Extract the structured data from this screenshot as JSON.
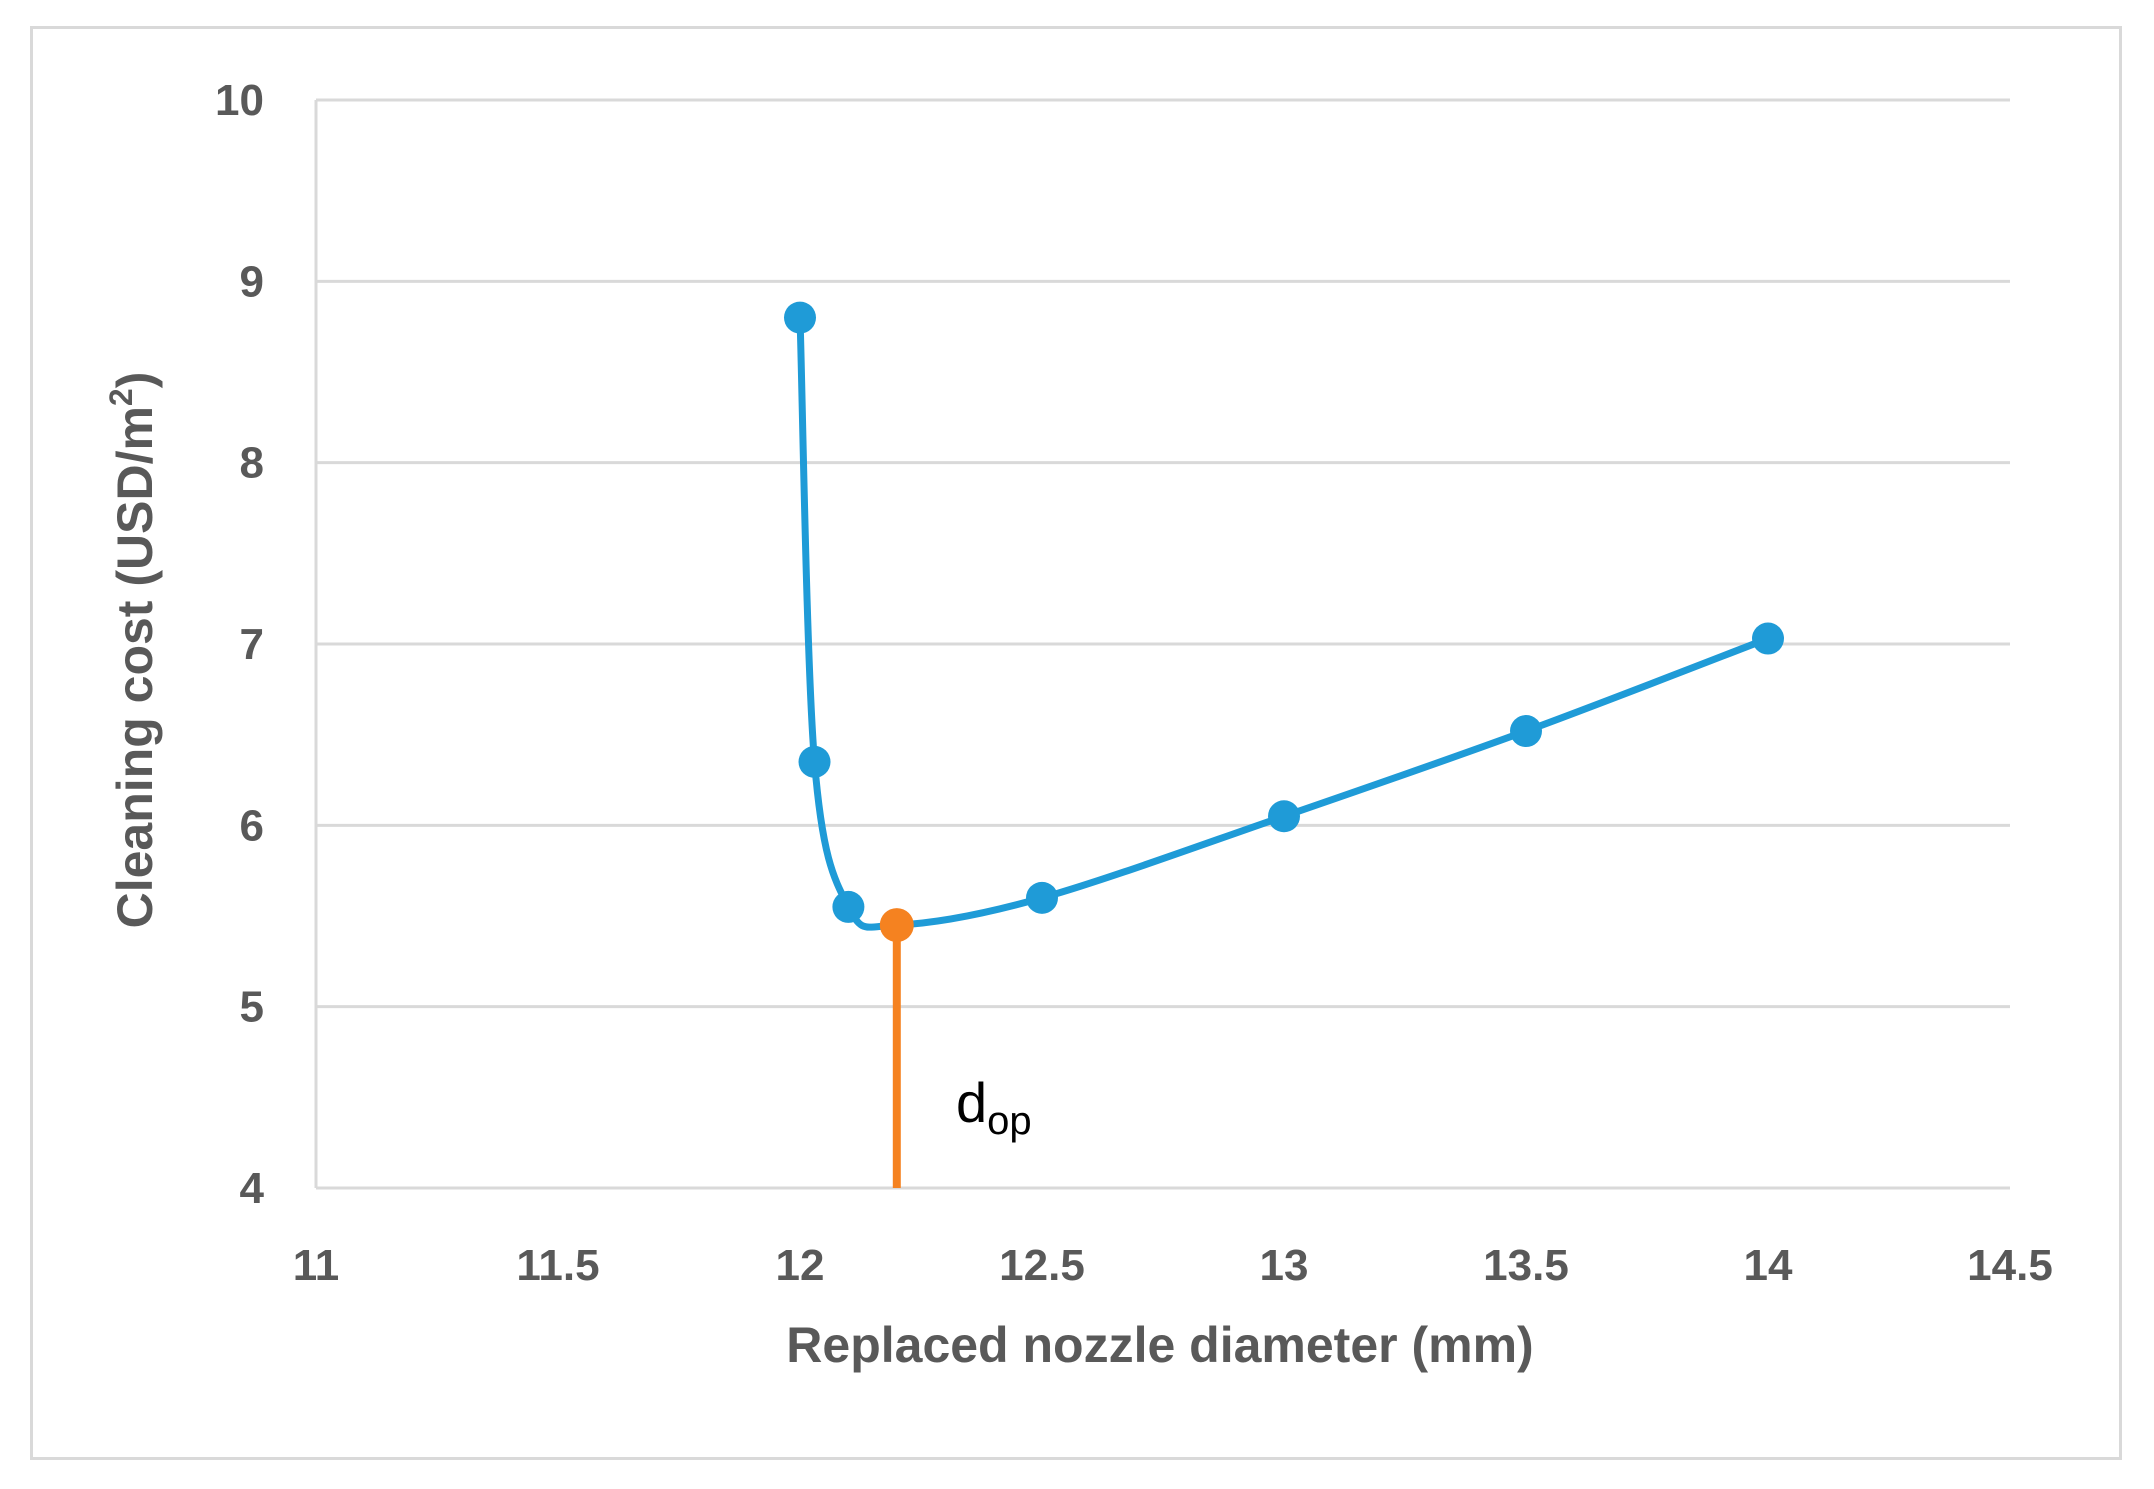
{
  "chart_data": {
    "type": "line",
    "xlabel": "Replaced nozzle diameter (mm)",
    "ylabel_main": "Cleaning cost (USD/m",
    "ylabel_sup": "2",
    "ylabel_end": ")",
    "xlim": [
      11,
      14.5
    ],
    "ylim": [
      4,
      10
    ],
    "x_ticks": [
      11,
      11.5,
      12,
      12.5,
      13,
      13.5,
      14,
      14.5
    ],
    "y_ticks": [
      4,
      5,
      6,
      7,
      8,
      9,
      10
    ],
    "grid": "horizontal",
    "series": [
      {
        "color": "#1f9bd7",
        "smooth": true,
        "points": [
          {
            "x": 12.0,
            "y": 8.8
          },
          {
            "x": 12.03,
            "y": 6.35
          },
          {
            "x": 12.1,
            "y": 5.55
          },
          {
            "x": 12.5,
            "y": 5.6
          },
          {
            "x": 13.0,
            "y": 6.05
          },
          {
            "x": 13.5,
            "y": 6.52
          },
          {
            "x": 14.0,
            "y": 7.03
          }
        ]
      }
    ],
    "optimum": {
      "x": 12.2,
      "y": 5.45,
      "color": "#f58220",
      "label_main": "d",
      "label_sub": "op"
    }
  },
  "colors": {
    "grid": "#d9d9d9",
    "axis": "#d9d9d9",
    "text": "#595959",
    "series": "#1f9bd7",
    "optimum": "#f58220"
  }
}
